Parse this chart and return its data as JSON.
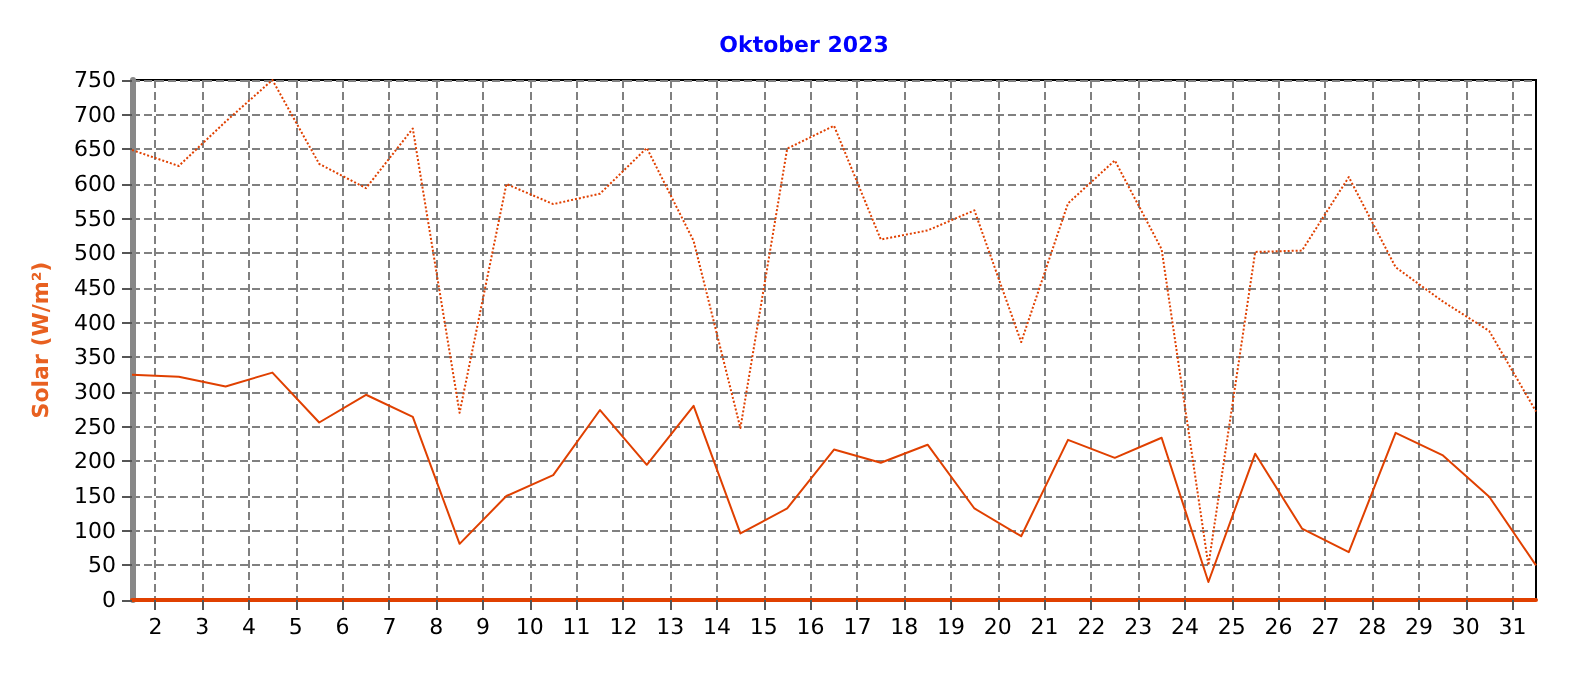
{
  "chart_data": {
    "type": "line",
    "title": "Oktober 2023",
    "ylabel": "Solar (W/m²)",
    "x": [
      1.5,
      2.5,
      3.5,
      4.5,
      5.5,
      6.5,
      7.5,
      8.5,
      9.5,
      10.5,
      11.5,
      12.5,
      13.5,
      14.5,
      15.5,
      16.5,
      17.5,
      18.5,
      19.5,
      20.5,
      21.5,
      22.5,
      23.5,
      24.5,
      25.5,
      26.5,
      27.5,
      28.5,
      29.5,
      30.5,
      31.5
    ],
    "series": [
      {
        "color": "#e04000",
        "line_style": "dotted",
        "values": [
          649,
          626,
          690,
          750,
          629,
          594,
          680,
          270,
          600,
          571,
          586,
          652,
          518,
          248,
          651,
          684,
          520,
          533,
          562,
          372,
          572,
          634,
          506,
          50,
          502,
          504,
          610,
          480,
          431,
          388,
          272
        ]
      },
      {
        "color": "#e04000",
        "line_style": "solid",
        "values": [
          325,
          322,
          308,
          328,
          256,
          296,
          264,
          81,
          150,
          180,
          274,
          195,
          280,
          96,
          132,
          217,
          198,
          224,
          132,
          92,
          231,
          205,
          234,
          26,
          211,
          103,
          69,
          241,
          209,
          149,
          50
        ]
      }
    ],
    "xlim": [
      1.5,
      31.5
    ],
    "xticks": [
      2,
      3,
      4,
      5,
      6,
      7,
      8,
      9,
      10,
      11,
      12,
      13,
      14,
      15,
      16,
      17,
      18,
      19,
      20,
      21,
      22,
      23,
      24,
      25,
      26,
      27,
      28,
      29,
      30,
      31
    ],
    "ylim": [
      0,
      750
    ],
    "yticks": [
      0,
      50,
      100,
      150,
      200,
      250,
      300,
      350,
      400,
      450,
      500,
      550,
      600,
      650,
      700,
      750
    ],
    "grid": true,
    "marker": "none"
  }
}
